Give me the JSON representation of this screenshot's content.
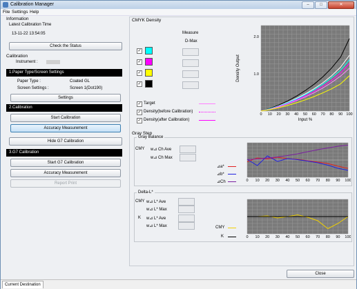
{
  "window": {
    "title": "Calibration Manager",
    "minimize": "–",
    "maximize": "□",
    "close": "✕"
  },
  "menu": {
    "file": "File",
    "settings": "Settings",
    "help": "Help"
  },
  "left": {
    "information": "Information",
    "latest_label": "Latest Calibration Time",
    "latest_value": "13-11-22 13:54:05",
    "check_status": "Check the Status",
    "calibration": "Calibration",
    "instrument_label": "Instrument :",
    "instrument_value": "",
    "sec1": "1.Paper Type/Screen Settings",
    "paper_type_label": "Paper Type :",
    "paper_type_value": "Coated GL",
    "screen_label": "Screen Settings :",
    "screen_value": "Screen 1(Dot190)",
    "settings_btn": "Settings",
    "sec2": "2.Calibration",
    "start_cal": "Start Calibration",
    "accuracy": "Accuracy Measurement",
    "hide_g7": "Hide G7 Calibration",
    "sec3": "3.G7 Calibration",
    "start_g7": "Start G7 Calibration",
    "accuracy2": "Accuracy Measurement",
    "report": "Report Print"
  },
  "cmyk": {
    "title": "CMYK Density",
    "measure": "Measure",
    "dmax": "D-Max",
    "colors": {
      "c": "#00ffff",
      "m": "#ff00ff",
      "y": "#ffff00",
      "k": "#000000"
    },
    "legend": [
      {
        "label": "Target",
        "color": "#ff80ff",
        "style": "solid"
      },
      {
        "label": "Density(before Calibration)",
        "color": "#ff00ff",
        "style": "dotted"
      },
      {
        "label": "Density(after Calibration)",
        "color": "#ff00ff",
        "style": "solid"
      }
    ]
  },
  "graystep": {
    "title": "Gray Step",
    "gray_balance": "Gray Balance",
    "cmy": "CMY",
    "ch_ave": "w⊿ Ch Ave",
    "ch_max": "w⊿ Ch Max",
    "da": "⊿a*",
    "db": "⊿b*",
    "dch": "⊿Ch",
    "deltaL": "Delta-L*",
    "l_ave": "w⊿ L* Ave",
    "l_max": "w⊿ L* Max",
    "k": "K",
    "leg_cmy": "CMY",
    "leg_k": "K"
  },
  "close_btn": "Close",
  "status_tab": "Current Destination",
  "chart_data": [
    {
      "type": "line",
      "xlabel": "Input %",
      "ylabel": "Density Output",
      "x": [
        0,
        10,
        20,
        30,
        40,
        50,
        60,
        70,
        80,
        90,
        100
      ],
      "ylim": [
        0,
        2.3
      ],
      "ytick_labels": [
        "1.0",
        "2.0"
      ],
      "series": [
        {
          "color": "#000000",
          "values": [
            0,
            0.07,
            0.16,
            0.27,
            0.4,
            0.55,
            0.72,
            0.92,
            1.16,
            1.45,
            1.95
          ]
        },
        {
          "color": "#ffffff",
          "values": [
            0,
            0.06,
            0.14,
            0.23,
            0.34,
            0.46,
            0.6,
            0.76,
            0.95,
            1.18,
            1.5
          ]
        },
        {
          "color": "#00ffff",
          "values": [
            0,
            0.06,
            0.13,
            0.22,
            0.32,
            0.44,
            0.57,
            0.72,
            0.9,
            1.1,
            1.38
          ]
        },
        {
          "color": "#ff00ff",
          "values": [
            0,
            0.05,
            0.12,
            0.2,
            0.3,
            0.41,
            0.53,
            0.67,
            0.83,
            1.02,
            1.28
          ]
        },
        {
          "color": "#ff80ff",
          "values": [
            0,
            0.05,
            0.11,
            0.19,
            0.28,
            0.38,
            0.49,
            0.62,
            0.77,
            0.94,
            1.15
          ]
        },
        {
          "color": "#ffff00",
          "values": [
            0,
            0.04,
            0.09,
            0.15,
            0.22,
            0.3,
            0.39,
            0.49,
            0.6,
            0.73,
            0.95
          ]
        }
      ]
    },
    {
      "type": "line",
      "x": [
        0,
        10,
        20,
        30,
        40,
        50,
        60,
        70,
        80,
        90,
        100
      ],
      "ylim": [
        -5,
        5
      ],
      "series": [
        {
          "color": "#e02020",
          "values": [
            -0.5,
            0.6,
            0.3,
            0.8,
            0.4,
            0.2,
            -0.2,
            -0.6,
            -1,
            -1.8,
            -2.4
          ]
        },
        {
          "color": "#2020e0",
          "values": [
            0.2,
            -1.6,
            1.2,
            -0.4,
            0.4,
            0.1,
            -0.3,
            -0.8,
            -1.5,
            -2.4,
            -3
          ]
        },
        {
          "color": "#7a1fa0",
          "values": [
            0.1,
            0.3,
            0.6,
            0.9,
            1.3,
            1.8,
            2.4,
            3,
            3.5,
            4,
            4.3
          ]
        }
      ]
    },
    {
      "type": "line",
      "x": [
        0,
        10,
        20,
        30,
        40,
        50,
        60,
        70,
        80,
        90,
        100
      ],
      "ylim": [
        -5,
        5
      ],
      "series": [
        {
          "color": "#f0d000",
          "values": [
            0,
            0,
            0.2,
            -0.4,
            0,
            0.5,
            -0.2,
            -1.2,
            -3.5,
            -2,
            0
          ]
        },
        {
          "color": "#000000",
          "values": [
            0,
            0,
            0,
            0,
            0,
            0,
            0,
            0,
            0,
            0,
            0
          ]
        }
      ]
    }
  ]
}
